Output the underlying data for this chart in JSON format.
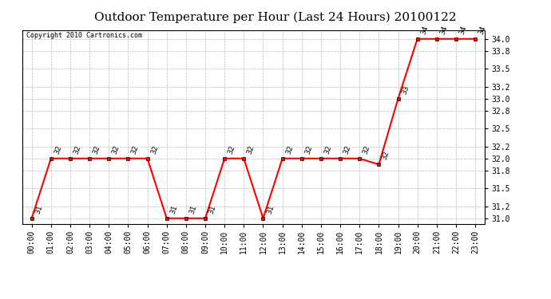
{
  "title": "Outdoor Temperature per Hour (Last 24 Hours) 20100122",
  "copyright_text": "Copyright 2010 Cartronics.com",
  "hours": [
    "00:00",
    "01:00",
    "02:00",
    "03:00",
    "04:00",
    "05:00",
    "06:00",
    "07:00",
    "08:00",
    "09:00",
    "10:00",
    "11:00",
    "12:00",
    "13:00",
    "14:00",
    "15:00",
    "16:00",
    "17:00",
    "18:00",
    "19:00",
    "20:00",
    "21:00",
    "22:00",
    "23:00"
  ],
  "temps": [
    31.0,
    32.0,
    32.0,
    32.0,
    32.0,
    32.0,
    32.0,
    31.0,
    31.0,
    31.0,
    32.0,
    32.0,
    31.0,
    32.0,
    32.0,
    32.0,
    32.0,
    32.0,
    31.9,
    33.0,
    34.0,
    34.0,
    34.0,
    34.0
  ],
  "ylim_min": 30.9,
  "ylim_max": 34.15,
  "line_color": "red",
  "marker_color": "red",
  "marker_edge_color": "black",
  "bg_color": "#ffffff",
  "grid_color": "#bbbbbb",
  "title_fontsize": 11,
  "tick_fontsize": 7,
  "annotation_fontsize": 6.5,
  "copyright_fontsize": 6,
  "ytick_vals": [
    31.0,
    31.2,
    31.5,
    31.8,
    32.0,
    32.2,
    32.5,
    32.8,
    33.0,
    33.2,
    33.5,
    33.8,
    34.0
  ]
}
